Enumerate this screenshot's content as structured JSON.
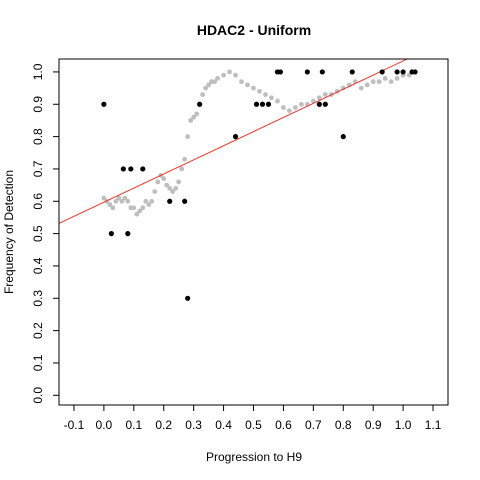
{
  "chart_data": {
    "type": "scatter",
    "title": "HDAC2 - Uniform",
    "xlabel": "Progression to H9",
    "ylabel": "Frequency of Detection",
    "xlim": [
      -0.15,
      1.15
    ],
    "ylim": [
      -0.03,
      1.04
    ],
    "x_ticks": [
      "-0.1",
      "0.0",
      "0.1",
      "0.2",
      "0.3",
      "0.4",
      "0.5",
      "0.6",
      "0.7",
      "0.8",
      "0.9",
      "1.0",
      "1.1"
    ],
    "y_ticks": [
      "0.0",
      "0.1",
      "0.2",
      "0.3",
      "0.4",
      "0.5",
      "0.6",
      "0.7",
      "0.8",
      "0.9",
      "1.0"
    ],
    "grid": false,
    "colors": {
      "points": "#000000",
      "smooth": "#bebebe",
      "fit": "#e8382d",
      "axis": "#000000"
    },
    "series": [
      {
        "kind": "points",
        "x": [
          0.0,
          0.025,
          0.065,
          0.08,
          0.09,
          0.13,
          0.22,
          0.27,
          0.28,
          0.32,
          0.44,
          0.51,
          0.53,
          0.55,
          0.58,
          0.59,
          0.68,
          0.72,
          0.73,
          0.74,
          0.8,
          0.83,
          0.93,
          0.98,
          1.0,
          1.03,
          1.04
        ],
        "y": [
          0.9,
          0.5,
          0.7,
          0.5,
          0.7,
          0.7,
          0.6,
          0.6,
          0.3,
          0.9,
          0.8,
          0.9,
          0.9,
          0.9,
          1.0,
          1.0,
          1.0,
          0.9,
          1.0,
          0.9,
          0.8,
          1.0,
          1.0,
          1.0,
          1.0,
          1.0,
          1.0
        ]
      },
      {
        "kind": "smooth",
        "x": [
          0.0,
          0.01,
          0.02,
          0.03,
          0.04,
          0.05,
          0.06,
          0.07,
          0.08,
          0.09,
          0.1,
          0.11,
          0.12,
          0.13,
          0.14,
          0.15,
          0.16,
          0.17,
          0.18,
          0.19,
          0.2,
          0.21,
          0.22,
          0.23,
          0.24,
          0.25,
          0.26,
          0.27,
          0.28,
          0.29,
          0.3,
          0.31,
          0.32,
          0.33,
          0.34,
          0.35,
          0.36,
          0.37,
          0.38,
          0.4,
          0.42,
          0.44,
          0.46,
          0.48,
          0.5,
          0.52,
          0.54,
          0.56,
          0.58,
          0.6,
          0.62,
          0.64,
          0.66,
          0.68,
          0.7,
          0.72,
          0.74,
          0.76,
          0.78,
          0.8,
          0.82,
          0.84,
          0.86,
          0.88,
          0.9,
          0.92,
          0.94,
          0.96,
          0.98,
          1.0,
          1.02
        ],
        "y": [
          0.61,
          0.6,
          0.59,
          0.58,
          0.6,
          0.61,
          0.6,
          0.61,
          0.6,
          0.58,
          0.58,
          0.56,
          0.57,
          0.58,
          0.6,
          0.59,
          0.6,
          0.63,
          0.66,
          0.68,
          0.67,
          0.65,
          0.64,
          0.63,
          0.64,
          0.66,
          0.7,
          0.73,
          0.8,
          0.85,
          0.86,
          0.87,
          0.9,
          0.93,
          0.95,
          0.96,
          0.97,
          0.97,
          0.98,
          0.99,
          1.0,
          0.99,
          0.97,
          0.96,
          0.95,
          0.94,
          0.93,
          0.92,
          0.91,
          0.89,
          0.88,
          0.89,
          0.9,
          0.9,
          0.91,
          0.92,
          0.93,
          0.93,
          0.94,
          0.95,
          0.96,
          0.97,
          0.95,
          0.96,
          0.97,
          0.97,
          0.98,
          0.97,
          0.98,
          0.99,
          0.99
        ]
      },
      {
        "kind": "fit",
        "intercept": 0.597,
        "slope": 0.437
      }
    ]
  }
}
